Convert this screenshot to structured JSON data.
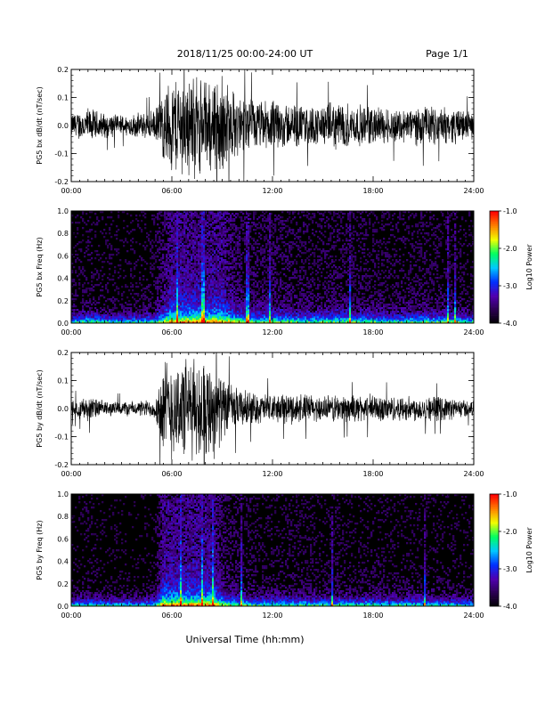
{
  "header": {
    "title": "2018/11/25  00:00-24:00 UT",
    "page": "Page 1/1"
  },
  "xaxis": {
    "label": "Universal Time (hh:mm)",
    "ticks": [
      "00:00",
      "06:00",
      "12:00",
      "18:00",
      "24:00"
    ],
    "range_hours": [
      0,
      24
    ]
  },
  "chart_data": [
    {
      "type": "line",
      "ylabel": "PG5 bx dB/dt (nT/sec)",
      "ylim": [
        -0.2,
        0.2
      ],
      "yticks": [
        "-0.2",
        "-0.1",
        "0.0",
        "0.1",
        "0.2"
      ],
      "x_hours": [
        0,
        1,
        2,
        3,
        4,
        5,
        5.5,
        6,
        6.5,
        7,
        7.5,
        8,
        8.5,
        9,
        9.5,
        10,
        11,
        12,
        13,
        14,
        15,
        16,
        17,
        18,
        19,
        20,
        21,
        22,
        23,
        24
      ],
      "envelope": [
        0.05,
        0.07,
        0.05,
        0.04,
        0.05,
        0.06,
        0.14,
        0.2,
        0.2,
        0.2,
        0.2,
        0.18,
        0.2,
        0.2,
        0.15,
        0.12,
        0.1,
        0.1,
        0.09,
        0.08,
        0.08,
        0.1,
        0.08,
        0.08,
        0.07,
        0.07,
        0.08,
        0.07,
        0.07,
        0.05
      ]
    },
    {
      "type": "heatmap",
      "ylabel": "PG5 bx Freq (Hz)",
      "ylim": [
        0.0,
        1.0
      ],
      "yticks": [
        "0.0",
        "0.2",
        "0.4",
        "0.6",
        "0.8",
        "1.0"
      ],
      "colorbar": {
        "label": "Log10 Power",
        "range": [
          -4.0,
          -1.0
        ],
        "ticks": [
          "-1.0",
          "-2.0",
          "-3.0",
          "-4.0"
        ]
      }
    },
    {
      "type": "line",
      "ylabel": "PG5 by dB/dt (nT/sec)",
      "ylim": [
        -0.2,
        0.2
      ],
      "yticks": [
        "-0.2",
        "-0.1",
        "0.0",
        "0.1",
        "0.2"
      ],
      "x_hours": [
        0,
        1,
        2,
        3,
        4,
        5,
        5.5,
        6,
        6.5,
        7,
        7.5,
        8,
        8.5,
        9,
        9.5,
        10,
        11,
        12,
        13,
        14,
        15,
        16,
        17,
        18,
        19,
        20,
        21,
        22,
        23,
        24
      ],
      "envelope": [
        0.03,
        0.05,
        0.03,
        0.03,
        0.03,
        0.04,
        0.2,
        0.2,
        0.2,
        0.2,
        0.2,
        0.2,
        0.2,
        0.12,
        0.1,
        0.08,
        0.06,
        0.06,
        0.06,
        0.06,
        0.05,
        0.06,
        0.05,
        0.06,
        0.05,
        0.05,
        0.05,
        0.05,
        0.04,
        0.03
      ]
    },
    {
      "type": "heatmap",
      "ylabel": "PG5 by Freq (Hz)",
      "ylim": [
        0.0,
        1.0
      ],
      "yticks": [
        "0.0",
        "0.2",
        "0.4",
        "0.6",
        "0.8",
        "1.0"
      ],
      "colorbar": {
        "label": "Log10 Power",
        "range": [
          -4.0,
          -1.0
        ],
        "ticks": [
          "-1.0",
          "-2.0",
          "-3.0",
          "-4.0"
        ]
      }
    }
  ],
  "colors": {
    "background": "#000000",
    "trace": "#000000",
    "colormap": [
      "#000000",
      "#2a0050",
      "#5000b0",
      "#0030ff",
      "#00c8ff",
      "#00ff60",
      "#f0ff00",
      "#ff8000",
      "#ff0000"
    ]
  }
}
